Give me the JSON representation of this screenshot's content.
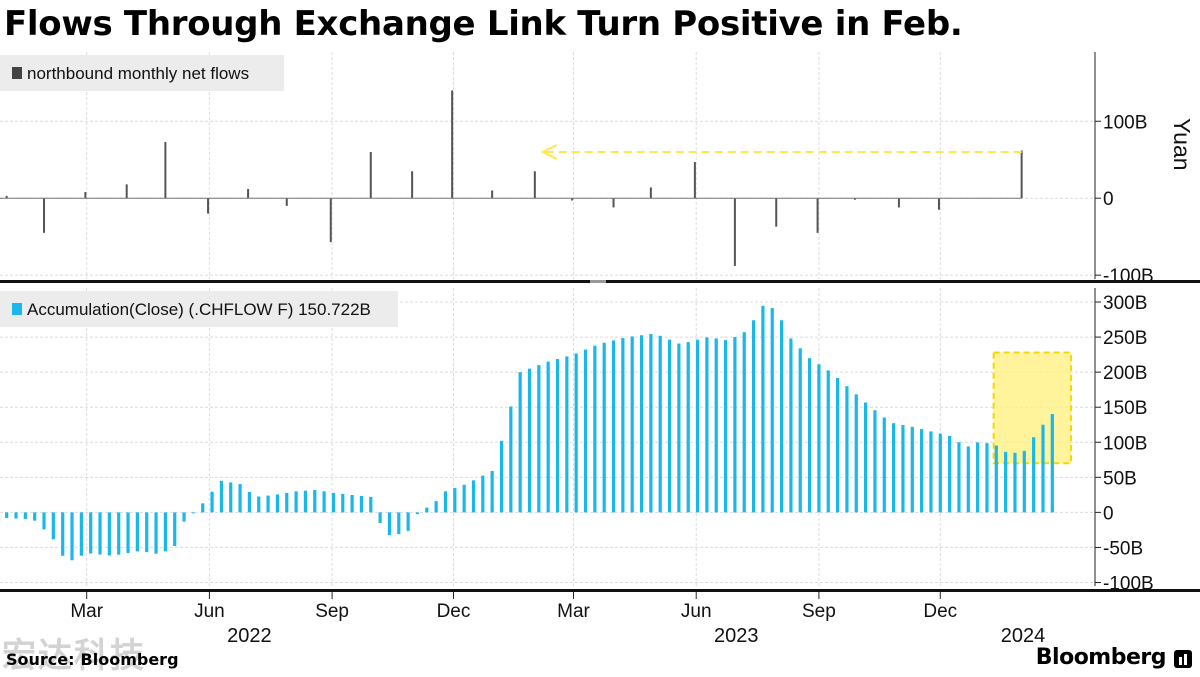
{
  "title": "Flows Through Exchange Link Turn Positive in Feb.",
  "source": {
    "label": "Source:",
    "name": "Bloomberg"
  },
  "brand": "Bloomberg",
  "watermark": "宏达科技",
  "chart_data": [
    {
      "type": "bar",
      "legend": "northbound monthly net flows",
      "legend_color": "#444444",
      "bar_color": "#555555",
      "ylabel": "Yuan",
      "ylim": [
        -105,
        190
      ],
      "yticks": [
        {
          "v": 100,
          "label": "100B"
        },
        {
          "v": 0,
          "label": "0"
        },
        {
          "v": -100,
          "label": "-100B"
        }
      ],
      "x": [
        "2021-12-31",
        "2022-01-28",
        "2022-02-28",
        "2022-03-31",
        "2022-04-29",
        "2022-05-31",
        "2022-06-30",
        "2022-07-29",
        "2022-08-31",
        "2022-09-30",
        "2022-10-31",
        "2022-11-30",
        "2022-12-30",
        "2023-01-31",
        "2023-02-28",
        "2023-03-31",
        "2023-04-28",
        "2023-05-31",
        "2023-06-30",
        "2023-07-31",
        "2023-08-31",
        "2023-09-28",
        "2023-10-31",
        "2023-11-30",
        "2023-12-29",
        "2024-01-31",
        "2024-02-29"
      ],
      "values": [
        3,
        -45,
        8,
        18,
        73,
        -20,
        12,
        -10,
        -57,
        60,
        35,
        140,
        10,
        35,
        -3,
        -12,
        14,
        47,
        -88,
        -37,
        -45,
        -2,
        -12,
        -15,
        0,
        62,
        0
      ],
      "annotation": {
        "type": "arrow",
        "color": "#ffe84a",
        "from": "2024-01-31",
        "to": "2023-01-31",
        "level": 60
      }
    },
    {
      "type": "bar",
      "legend": "Accumulation(Close) (.CHFLOW F) 150.722B",
      "legend_color": "#1ab8ea",
      "bar_color": "#1ab8ea",
      "ylim": [
        -105,
        320
      ],
      "yticks": [
        {
          "v": 300,
          "label": "300B"
        },
        {
          "v": 250,
          "label": "250B"
        },
        {
          "v": 200,
          "label": "200B"
        },
        {
          "v": 150,
          "label": "150B"
        },
        {
          "v": 100,
          "label": "100B"
        },
        {
          "v": 50,
          "label": "50B"
        },
        {
          "v": 0,
          "label": "0"
        },
        {
          "v": -50,
          "label": "-50B"
        },
        {
          "v": -100,
          "label": "-100B"
        }
      ],
      "points": [
        [
          "2021-12-31",
          -8
        ],
        [
          "2022-01-20",
          -10
        ],
        [
          "2022-02-03",
          -35
        ],
        [
          "2022-02-14",
          -72
        ],
        [
          "2022-03-01",
          -58
        ],
        [
          "2022-03-20",
          -62
        ],
        [
          "2022-04-10",
          -55
        ],
        [
          "2022-04-25",
          -60
        ],
        [
          "2022-05-06",
          -48
        ],
        [
          "2022-05-12",
          -15
        ],
        [
          "2022-05-25",
          8
        ],
        [
          "2022-06-01",
          25
        ],
        [
          "2022-06-10",
          45
        ],
        [
          "2022-06-25",
          40
        ],
        [
          "2022-07-05",
          22
        ],
        [
          "2022-07-20",
          25
        ],
        [
          "2022-08-05",
          30
        ],
        [
          "2022-08-20",
          32
        ],
        [
          "2022-09-01",
          28
        ],
        [
          "2022-09-15",
          25
        ],
        [
          "2022-09-30",
          22
        ],
        [
          "2022-10-05",
          -10
        ],
        [
          "2022-10-15",
          -35
        ],
        [
          "2022-10-30",
          -25
        ],
        [
          "2022-11-05",
          2
        ],
        [
          "2022-11-15",
          10
        ],
        [
          "2022-11-25",
          30
        ],
        [
          "2022-12-10",
          40
        ],
        [
          "2022-12-31",
          60
        ],
        [
          "2023-01-10",
          130
        ],
        [
          "2023-01-20",
          200
        ],
        [
          "2023-02-10",
          215
        ],
        [
          "2023-03-01",
          225
        ],
        [
          "2023-03-20",
          240
        ],
        [
          "2023-04-10",
          250
        ],
        [
          "2023-05-01",
          255
        ],
        [
          "2023-05-20",
          240
        ],
        [
          "2023-06-10",
          250
        ],
        [
          "2023-06-25",
          245
        ],
        [
          "2023-07-10",
          260
        ],
        [
          "2023-07-20",
          295
        ],
        [
          "2023-07-31",
          290
        ],
        [
          "2023-08-10",
          250
        ],
        [
          "2023-08-25",
          220
        ],
        [
          "2023-09-10",
          200
        ],
        [
          "2023-09-25",
          175
        ],
        [
          "2023-10-10",
          150
        ],
        [
          "2023-10-25",
          128
        ],
        [
          "2023-11-10",
          122
        ],
        [
          "2023-11-25",
          115
        ],
        [
          "2023-12-10",
          108
        ],
        [
          "2023-12-20",
          92
        ],
        [
          "2023-12-28",
          100
        ],
        [
          "2024-01-10",
          98
        ],
        [
          "2024-01-20",
          85
        ],
        [
          "2024-02-01",
          85
        ],
        [
          "2024-02-10",
          110
        ],
        [
          "2024-02-20",
          135
        ],
        [
          "2024-02-29",
          150.722
        ]
      ],
      "annotation": {
        "type": "highlight",
        "color": "#fff07a",
        "from": "2024-01-10",
        "to": "2024-03-08",
        "y_range": [
          70,
          228
        ]
      }
    }
  ],
  "x_axis": {
    "month_ticks": [
      {
        "date": "2022-03-01",
        "label": "Mar"
      },
      {
        "date": "2022-06-01",
        "label": "Jun"
      },
      {
        "date": "2022-09-01",
        "label": "Sep"
      },
      {
        "date": "2022-12-01",
        "label": "Dec"
      },
      {
        "date": "2023-03-01",
        "label": "Mar"
      },
      {
        "date": "2023-06-01",
        "label": "Jun"
      },
      {
        "date": "2023-09-01",
        "label": "Sep"
      },
      {
        "date": "2023-12-01",
        "label": "Dec"
      }
    ],
    "years": [
      {
        "date": "2022-07-01",
        "label": "2022"
      },
      {
        "date": "2023-07-01",
        "label": "2023"
      },
      {
        "date": "2024-02-01",
        "label": "2024"
      }
    ],
    "range": [
      "2021-12-26",
      "2024-03-26"
    ]
  }
}
